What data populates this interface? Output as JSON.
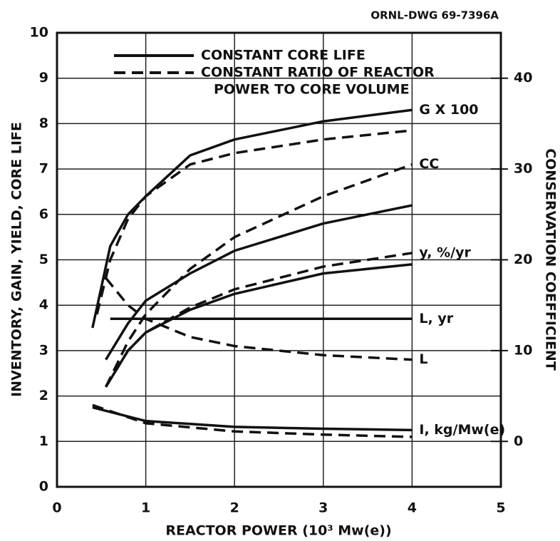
{
  "chart_data": {
    "type": "line",
    "drawing_number": "ORNL-DWG 69-7396A",
    "xlabel": "REACTOR POWER (10³ Mw(e))",
    "ylabel": "INVENTORY, GAIN, YIELD, CORE LIFE",
    "y2label": "CONSERVATION COEFFICIENT",
    "xlim": [
      0,
      5
    ],
    "xticks": [
      0,
      1,
      2,
      3,
      4,
      5
    ],
    "ylim": [
      0,
      10
    ],
    "yticks": [
      0,
      1,
      2,
      3,
      4,
      5,
      6,
      7,
      8,
      9,
      10
    ],
    "y2lim": [
      -5,
      45
    ],
    "y2ticks": [
      0,
      10,
      20,
      30,
      40
    ],
    "grid": true,
    "legend": [
      {
        "style": "solid",
        "label": [
          "CONSTANT CORE LIFE"
        ]
      },
      {
        "style": "dashed",
        "label": [
          "CONSTANT RATIO OF REACTOR",
          "POWER TO CORE VOLUME"
        ]
      }
    ],
    "series": [
      {
        "name": "G X 100",
        "style": "solid",
        "color": "#111111",
        "x": [
          0.4,
          0.6,
          0.8,
          1,
          1.5,
          2,
          3,
          4
        ],
        "values": [
          3.5,
          5.3,
          6.0,
          6.4,
          7.3,
          7.65,
          8.05,
          8.3
        ]
      },
      {
        "style": "dashed",
        "color": "#111111",
        "x": [
          0.45,
          0.6,
          0.8,
          1,
          1.5,
          2,
          3,
          4
        ],
        "values": [
          3.8,
          5.0,
          5.9,
          6.4,
          7.1,
          7.35,
          7.65,
          7.85
        ]
      },
      {
        "style": "solid",
        "color": "#111111",
        "axis": "y2",
        "x": [
          0.55,
          0.8,
          1,
          1.5,
          2,
          3,
          4
        ],
        "values": [
          9,
          13,
          15.5,
          18.5,
          21,
          24,
          26
        ]
      },
      {
        "name": "CC",
        "style": "dashed",
        "color": "#111111",
        "axis": "y2",
        "x": [
          0.55,
          0.8,
          1,
          1.5,
          2,
          3,
          4
        ],
        "values": [
          6,
          11,
          14,
          19,
          22.5,
          27,
          30.5
        ]
      },
      {
        "style": "solid",
        "color": "#111111",
        "x": [
          0.55,
          0.8,
          1,
          1.5,
          2,
          3,
          4
        ],
        "values": [
          2.2,
          3.0,
          3.4,
          3.9,
          4.25,
          4.7,
          4.9
        ]
      },
      {
        "name": "y, %/yr",
        "style": "dashed",
        "color": "#111111",
        "x": [
          0.55,
          0.8,
          1,
          1.5,
          2,
          3,
          4
        ],
        "values": [
          2.2,
          3.0,
          3.4,
          3.95,
          4.35,
          4.85,
          5.15
        ]
      },
      {
        "name": "L, yr",
        "style": "solid",
        "color": "#111111",
        "x": [
          0.6,
          4
        ],
        "values": [
          3.7,
          3.7
        ]
      },
      {
        "name": "L",
        "style": "dashed",
        "color": "#111111",
        "x": [
          0.55,
          0.8,
          1,
          1.5,
          2,
          3,
          4
        ],
        "values": [
          4.6,
          4.0,
          3.7,
          3.3,
          3.1,
          2.9,
          2.8
        ]
      },
      {
        "name": "I, kg/Mw(e)",
        "style": "solid",
        "color": "#111111",
        "x": [
          0.4,
          1,
          2,
          3,
          4
        ],
        "values": [
          1.75,
          1.45,
          1.32,
          1.28,
          1.25
        ]
      },
      {
        "style": "dashed",
        "color": "#111111",
        "x": [
          0.4,
          1,
          2,
          3,
          4
        ],
        "values": [
          1.8,
          1.4,
          1.22,
          1.15,
          1.1
        ]
      }
    ]
  }
}
